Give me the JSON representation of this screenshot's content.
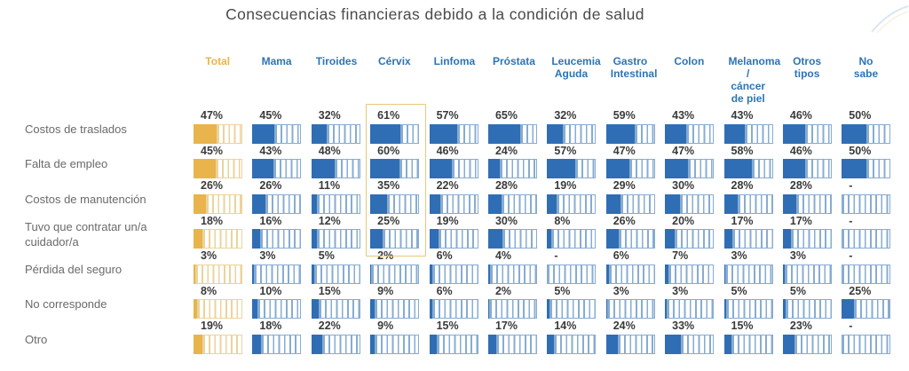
{
  "title": "Consecuencias financieras debido a la condición de salud",
  "chart_data": {
    "type": "table",
    "title": "Consecuencias financieras debido a la condición de salud",
    "description": "Percent horizontal gauge bars per health condition",
    "no_data_marker": "-",
    "legend_position": "none",
    "highlight": {
      "column": "Cérvix",
      "row_span": "Costos de traslados to Tuvo que contratar un/a cuidador/a"
    },
    "columns": [
      "Total",
      "Mama",
      "Tiroides",
      "Cérvix",
      "Linfoma",
      "Próstata",
      "Leucemia Aguda",
      "Gastro Intestinal",
      "Colon",
      "Melanoma / cáncer de piel",
      "Otros tipos",
      "No sabe"
    ],
    "rows": [
      {
        "label": "Costos de traslados",
        "values": [
          47,
          45,
          32,
          61,
          57,
          65,
          32,
          59,
          43,
          43,
          46,
          50
        ]
      },
      {
        "label": "Falta de empleo",
        "values": [
          45,
          43,
          48,
          60,
          46,
          24,
          57,
          47,
          47,
          58,
          46,
          50
        ]
      },
      {
        "label": "Costos de manutención",
        "values": [
          26,
          26,
          11,
          35,
          22,
          28,
          19,
          29,
          30,
          28,
          28,
          null
        ]
      },
      {
        "label": "Tuvo que contratar un/a cuidador/a",
        "values": [
          18,
          16,
          12,
          25,
          19,
          30,
          8,
          26,
          20,
          17,
          17,
          null
        ]
      },
      {
        "label": "Pérdida del seguro",
        "values": [
          3,
          3,
          5,
          2,
          6,
          4,
          null,
          6,
          7,
          3,
          3,
          null
        ]
      },
      {
        "label": "No corresponde",
        "values": [
          8,
          10,
          15,
          9,
          6,
          2,
          5,
          3,
          3,
          5,
          5,
          25
        ]
      },
      {
        "label": "Otro",
        "values": [
          19,
          18,
          22,
          9,
          15,
          17,
          14,
          24,
          33,
          15,
          23,
          null
        ]
      }
    ]
  },
  "colors": {
    "total_fill": "#E9B44C",
    "total_stripe": "#EBD39C",
    "series_fill": "#2F6EB5",
    "series_stripe": "#87ACD3",
    "header_text": "#2E74B5",
    "total_header_text": "#E9B44C",
    "row_label_text": "#6A6A6A",
    "value_text": "#3A3A3A",
    "highlight_border": "#E7C878",
    "title_text": "#4A4A4A"
  }
}
